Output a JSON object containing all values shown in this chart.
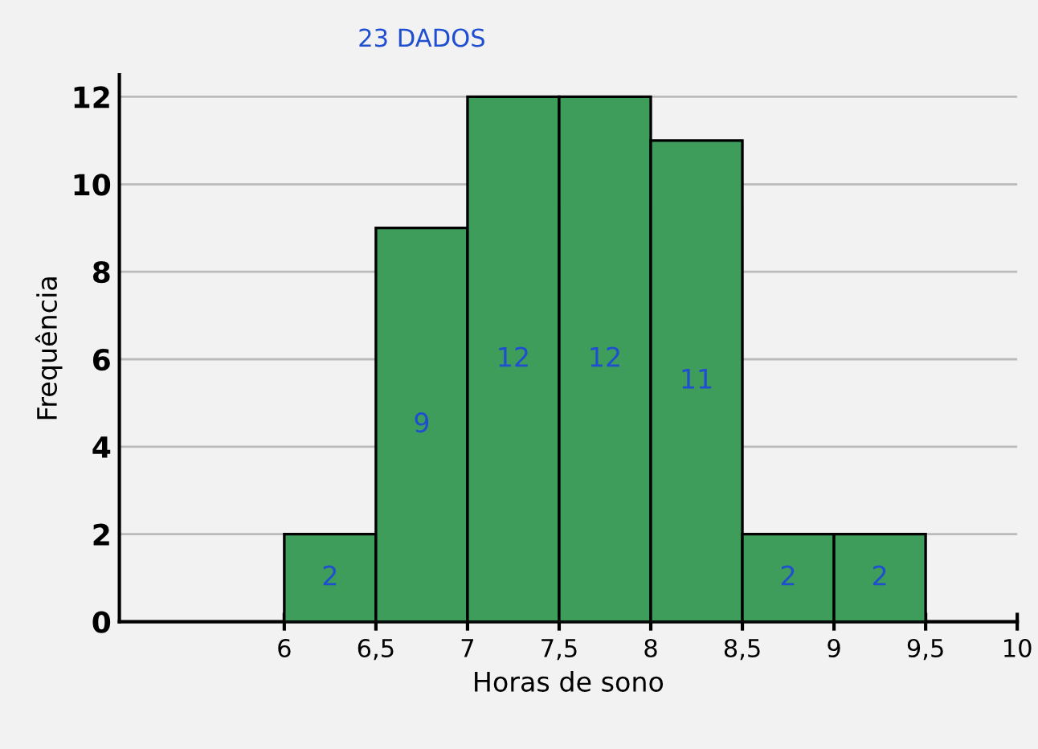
{
  "chart_data": {
    "type": "histogram",
    "xlabel": "Horas de sono",
    "ylabel": "Frequência",
    "bins": [
      6,
      6.5,
      7,
      7.5,
      8,
      8.5,
      9,
      9.5
    ],
    "values": [
      2,
      9,
      12,
      12,
      11,
      2,
      2
    ],
    "color": "#3f9d5c",
    "data_labels": true,
    "xlim": [
      5.1,
      10
    ],
    "ylim": [
      0,
      12.5
    ],
    "xticks": [
      6,
      {
        "value": 6.5,
        "label": "6,5"
      },
      7,
      {
        "value": 7.5,
        "label": "7,5"
      },
      8,
      {
        "value": 8.5,
        "label": "8,5"
      },
      9,
      {
        "value": 9.5,
        "label": "9,5"
      },
      10
    ],
    "yticks": [
      0,
      2,
      4,
      6,
      8,
      10,
      12
    ],
    "grid": "y",
    "annotations": [
      "23 DADOS"
    ]
  }
}
